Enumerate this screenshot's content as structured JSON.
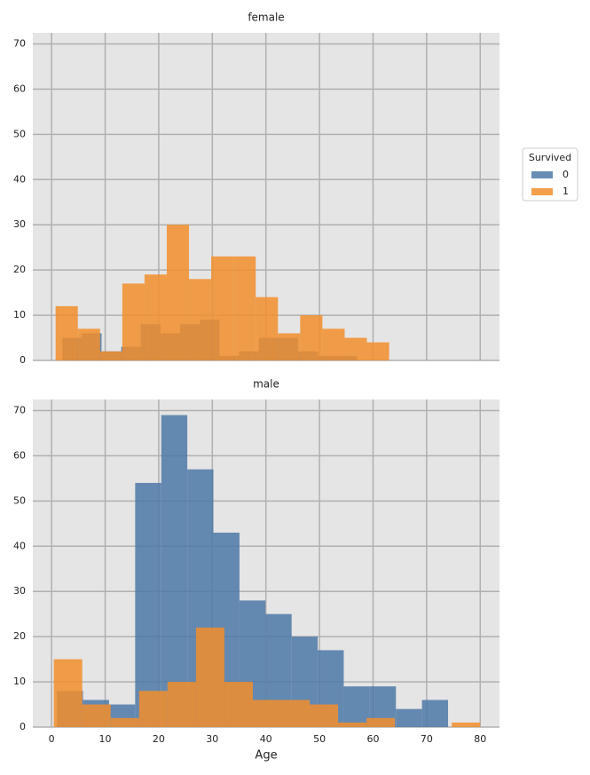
{
  "chart_data": [
    {
      "type": "histogram",
      "title": "female",
      "legend_title": "Survived",
      "xlim": [
        -3.5,
        83.6
      ],
      "ylim": [
        0,
        72.45
      ],
      "xticks": [
        0,
        10,
        20,
        30,
        40,
        50,
        60,
        70,
        80
      ],
      "yticks": [
        0,
        10,
        20,
        30,
        40,
        50,
        60,
        70
      ],
      "grid": true,
      "series": [
        {
          "name": "0",
          "color": "#4e79a7",
          "bins": [
            2,
            5.67,
            9.33,
            13,
            16.67,
            20.33,
            24,
            27.67,
            31.33,
            35,
            38.67,
            42.33,
            46,
            49.67,
            53.33,
            57
          ],
          "values": [
            5,
            6,
            2,
            3,
            8,
            6,
            8,
            9,
            1,
            2,
            5,
            5,
            2,
            1,
            1
          ]
        },
        {
          "name": "1",
          "color": "#f28e2b",
          "bins": [
            0.75,
            4.9,
            9.05,
            13.2,
            17.35,
            21.5,
            25.65,
            29.8,
            33.95,
            38.1,
            42.25,
            46.4,
            50.55,
            54.7,
            58.85,
            63
          ],
          "values": [
            12,
            7,
            2,
            17,
            19,
            30,
            18,
            23,
            23,
            14,
            6,
            10,
            7,
            5,
            4
          ]
        }
      ]
    },
    {
      "type": "histogram",
      "title": "male",
      "xlabel": "Age",
      "xlim": [
        -3.5,
        83.6
      ],
      "ylim": [
        0,
        72.45
      ],
      "xticks": [
        0,
        10,
        20,
        30,
        40,
        50,
        60,
        70,
        80
      ],
      "yticks": [
        0,
        10,
        20,
        30,
        40,
        50,
        60,
        70
      ],
      "grid": true,
      "series": [
        {
          "name": "0",
          "color": "#4e79a7",
          "bins": [
            1,
            5.87,
            10.73,
            15.6,
            20.47,
            25.33,
            30.2,
            35.07,
            39.93,
            44.8,
            49.67,
            54.53,
            59.4,
            64.27,
            69.13,
            74
          ],
          "values": [
            8,
            6,
            5,
            54,
            69,
            57,
            43,
            28,
            25,
            20,
            17,
            9,
            9,
            4,
            6
          ]
        },
        {
          "name": "1",
          "color": "#f28e2b",
          "bins": [
            0.42,
            5.73,
            11.03,
            16.34,
            21.64,
            26.95,
            32.25,
            37.56,
            42.86,
            48.17,
            53.47,
            58.78,
            64.08,
            69.39,
            74.69,
            80
          ],
          "values": [
            15,
            5,
            2,
            8,
            10,
            22,
            10,
            6,
            6,
            5,
            1,
            2,
            0,
            0,
            1
          ]
        }
      ]
    }
  ]
}
